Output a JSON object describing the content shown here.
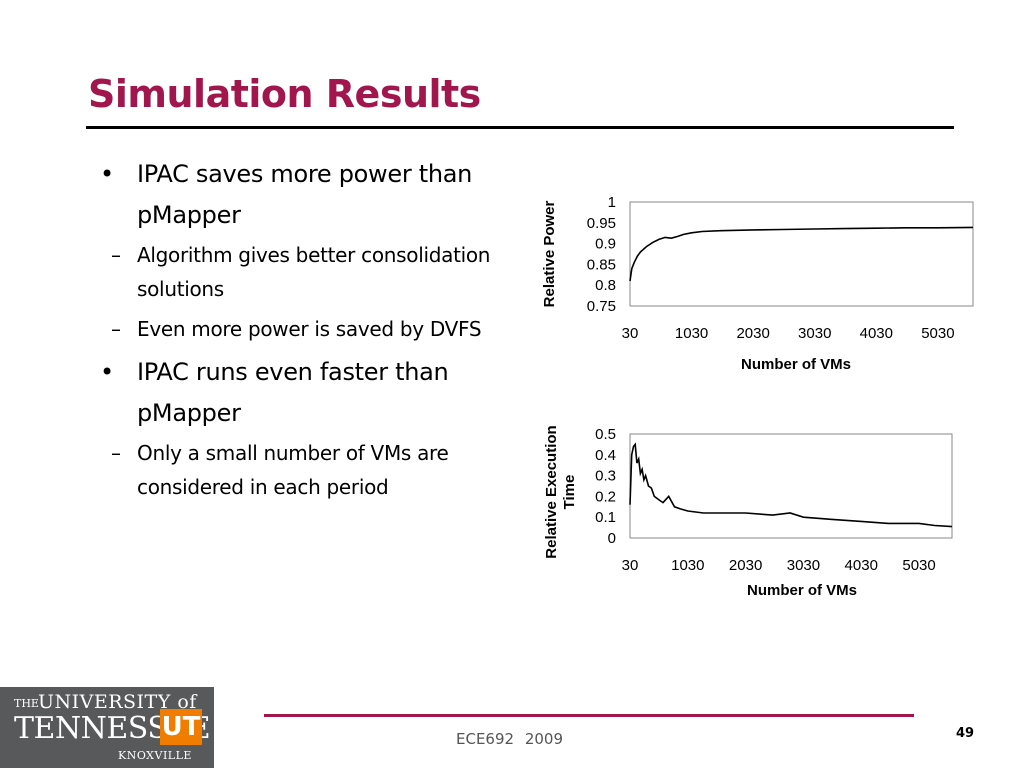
{
  "slide": {
    "title": "Simulation Results",
    "footer_text": "ECE692   2009",
    "page_number": "49"
  },
  "logo": {
    "the": "THE",
    "university": "UNIVERSITY of",
    "tennessee": "TENNESSEE",
    "ut": "UT",
    "knoxville": "KNOXVILLE"
  },
  "bullets": [
    {
      "text": "IPAC saves more power than pMapper",
      "sub": [
        "Algorithm gives better consolidation solutions",
        "Even more power is saved by DVFS"
      ]
    },
    {
      "text": "IPAC runs even faster than pMapper",
      "sub": [
        "Only a small number of VMs are considered in each period"
      ]
    }
  ],
  "colors": {
    "title": "#a1164c",
    "rule": "#a1164c",
    "logo_bg": "#58595b",
    "logo_ut": "#f07c00"
  },
  "chart_data": [
    {
      "type": "line",
      "title": "",
      "xlabel": "Number of VMs",
      "ylabel": "Relative Power",
      "xlim": [
        30,
        5600
      ],
      "ylim": [
        0.75,
        1
      ],
      "xticks": [
        "30",
        "1030",
        "2030",
        "3030",
        "4030",
        "5030"
      ],
      "xtick_values": [
        30,
        1030,
        2030,
        3030,
        4030,
        5030
      ],
      "yticks": [
        "1",
        "0.95",
        "0.9",
        "0.85",
        "0.8",
        "0.75"
      ],
      "ytick_values": [
        1,
        0.95,
        0.9,
        0.85,
        0.8,
        0.75
      ],
      "grid": false,
      "series": [
        {
          "x": [
            30,
            60,
            100,
            150,
            200,
            300,
            400,
            500,
            600,
            700,
            800,
            900,
            1030,
            1200,
            1500,
            2030,
            2500,
            3030,
            3500,
            4030,
            4500,
            5030,
            5600
          ],
          "y": [
            0.81,
            0.84,
            0.855,
            0.87,
            0.88,
            0.893,
            0.903,
            0.91,
            0.915,
            0.913,
            0.917,
            0.922,
            0.926,
            0.929,
            0.931,
            0.933,
            0.934,
            0.935,
            0.936,
            0.937,
            0.938,
            0.938,
            0.939
          ]
        }
      ]
    },
    {
      "type": "line",
      "title": "",
      "xlabel": "Number of VMs",
      "ylabel": "Relative Execution Time",
      "xlim": [
        30,
        5600
      ],
      "ylim": [
        0,
        0.5
      ],
      "xticks": [
        "30",
        "1030",
        "2030",
        "3030",
        "4030",
        "5030"
      ],
      "xtick_values": [
        30,
        1030,
        2030,
        3030,
        4030,
        5030
      ],
      "yticks": [
        "0.5",
        "0.4",
        "0.3",
        "0.2",
        "0.1",
        "0"
      ],
      "ytick_values": [
        0.5,
        0.4,
        0.3,
        0.2,
        0.1,
        0
      ],
      "grid": false,
      "series": [
        {
          "x": [
            30,
            60,
            90,
            120,
            150,
            180,
            210,
            240,
            270,
            300,
            350,
            400,
            450,
            500,
            550,
            600,
            700,
            800,
            900,
            1030,
            1300,
            1600,
            2030,
            2500,
            2800,
            3030,
            3500,
            4030,
            4500,
            5030,
            5300,
            5600
          ],
          "y": [
            0.16,
            0.4,
            0.44,
            0.45,
            0.36,
            0.38,
            0.31,
            0.33,
            0.28,
            0.3,
            0.25,
            0.24,
            0.2,
            0.19,
            0.18,
            0.17,
            0.2,
            0.15,
            0.14,
            0.13,
            0.12,
            0.12,
            0.12,
            0.11,
            0.12,
            0.1,
            0.09,
            0.08,
            0.07,
            0.07,
            0.06,
            0.055
          ]
        }
      ]
    }
  ]
}
